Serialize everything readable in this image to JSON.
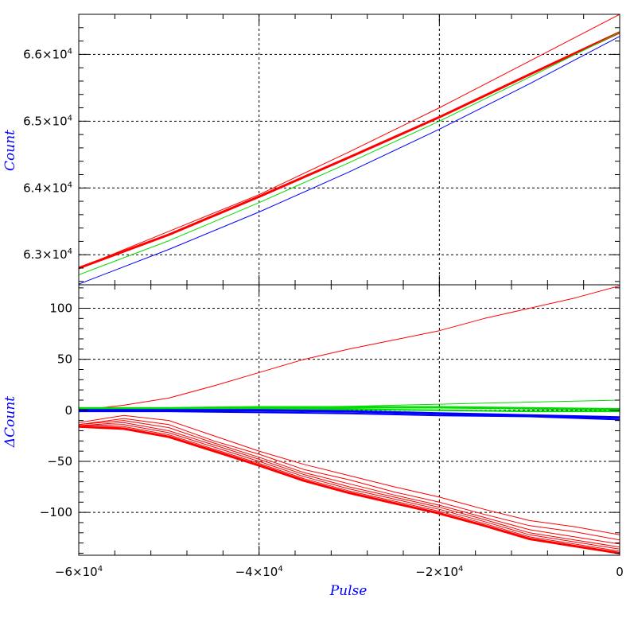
{
  "colors": {
    "red": "#ff0000",
    "green": "#00dd00",
    "blue": "#0000ff",
    "axis_title": "#0000ff",
    "frame": "#000000",
    "grid": "#000000"
  },
  "chart_data": [
    {
      "type": "line",
      "ylabel": "Count",
      "xlim": [
        -60000,
        0
      ],
      "ylim": [
        62550,
        66600
      ],
      "grid": true,
      "y_ticks": [
        {
          "value": 63000,
          "label_base": "6.3×10",
          "label_exp": "4"
        },
        {
          "value": 64000,
          "label_base": "6.4×10",
          "label_exp": "4"
        },
        {
          "value": 65000,
          "label_base": "6.5×10",
          "label_exp": "4"
        },
        {
          "value": 66000,
          "label_base": "6.6×10",
          "label_exp": "4"
        }
      ],
      "series": [
        {
          "color": "red",
          "width": 1,
          "x": [
            -60000,
            -50000,
            -40000,
            -30000,
            -20000,
            -10000,
            0
          ],
          "values": [
            62800,
            63350,
            63900,
            64540,
            65200,
            65900,
            66600
          ]
        },
        {
          "color": "red",
          "width": 3,
          "x": [
            -60000,
            -50000,
            -40000,
            -30000,
            -20000,
            -10000,
            0
          ],
          "values": [
            62800,
            63300,
            63870,
            64460,
            65060,
            65700,
            66330
          ]
        },
        {
          "color": "green",
          "width": 1,
          "x": [
            -60000,
            -50000,
            -40000,
            -30000,
            -20000,
            -10000,
            0
          ],
          "values": [
            62700,
            63210,
            63780,
            64380,
            65000,
            65660,
            66330
          ]
        },
        {
          "color": "blue",
          "width": 1,
          "x": [
            -60000,
            -50000,
            -40000,
            -30000,
            -20000,
            -10000,
            0
          ],
          "values": [
            62560,
            63080,
            63640,
            64240,
            64880,
            65560,
            66270
          ]
        }
      ]
    },
    {
      "type": "line",
      "xlabel": "Pulse",
      "ylabel": "ΔCount",
      "xlim": [
        -60000,
        0
      ],
      "ylim": [
        -142,
        123
      ],
      "grid": true,
      "x_ticks": [
        {
          "value": -60000,
          "label_base": "−6×10",
          "label_exp": "4"
        },
        {
          "value": -40000,
          "label_base": "−4×10",
          "label_exp": "4"
        },
        {
          "value": -20000,
          "label_base": "−2×10",
          "label_exp": "4"
        },
        {
          "value": 0,
          "label_base": "0",
          "label_exp": ""
        }
      ],
      "y_ticks": [
        {
          "value": -100,
          "label": "−100"
        },
        {
          "value": -50,
          "label": "−50"
        },
        {
          "value": 0,
          "label": "0"
        },
        {
          "value": 50,
          "label": "50"
        },
        {
          "value": 100,
          "label": "100"
        }
      ],
      "series": [
        {
          "color": "red",
          "width": 1,
          "x": [
            -60000,
            -55000,
            -50000,
            -45000,
            -40000,
            -35000,
            -30000,
            -25000,
            -20000,
            -15000,
            -10000,
            -5000,
            0
          ],
          "values": [
            0,
            5,
            12,
            24,
            37,
            50,
            60,
            69,
            78,
            90,
            100,
            110,
            122
          ]
        },
        {
          "color": "red",
          "width": 1,
          "x": [
            -60000,
            -55000,
            -50000,
            -45000,
            -40000,
            -35000,
            -30000,
            -25000,
            -20000,
            -15000,
            -10000,
            -5000,
            0
          ],
          "values": [
            -12,
            -5,
            -10,
            -25,
            -40,
            -53,
            -64,
            -75,
            -85,
            -97,
            -108,
            -114,
            -122
          ]
        },
        {
          "color": "red",
          "width": 1,
          "x": [
            -60000,
            -55000,
            -50000,
            -45000,
            -40000,
            -35000,
            -30000,
            -25000,
            -20000,
            -15000,
            -10000,
            -5000,
            0
          ],
          "values": [
            -14,
            -8,
            -14,
            -30,
            -43,
            -58,
            -68,
            -80,
            -90,
            -102,
            -113,
            -119,
            -127
          ]
        },
        {
          "color": "red",
          "width": 1,
          "x": [
            -60000,
            -55000,
            -50000,
            -45000,
            -40000,
            -35000,
            -30000,
            -25000,
            -20000,
            -15000,
            -10000,
            -5000,
            0
          ],
          "values": [
            -14,
            -10,
            -17,
            -32,
            -46,
            -61,
            -72,
            -83,
            -93,
            -105,
            -117,
            -124,
            -131
          ]
        },
        {
          "color": "red",
          "width": 1,
          "x": [
            -60000,
            -55000,
            -50000,
            -45000,
            -40000,
            -35000,
            -30000,
            -25000,
            -20000,
            -15000,
            -10000,
            -5000,
            0
          ],
          "values": [
            -15,
            -12,
            -20,
            -34,
            -48,
            -63,
            -75,
            -85,
            -95,
            -107,
            -120,
            -127,
            -134
          ]
        },
        {
          "color": "red",
          "width": 1,
          "x": [
            -60000,
            -55000,
            -50000,
            -45000,
            -40000,
            -35000,
            -30000,
            -25000,
            -20000,
            -15000,
            -10000,
            -5000,
            0
          ],
          "values": [
            -15,
            -14,
            -22,
            -36,
            -50,
            -65,
            -77,
            -87,
            -97,
            -109,
            -122,
            -129,
            -136
          ]
        },
        {
          "color": "red",
          "width": 1,
          "x": [
            -60000,
            -55000,
            -50000,
            -45000,
            -40000,
            -35000,
            -30000,
            -25000,
            -20000,
            -15000,
            -10000,
            -5000,
            0
          ],
          "values": [
            -16,
            -16,
            -24,
            -38,
            -52,
            -67,
            -79,
            -89,
            -99,
            -111,
            -124,
            -131,
            -138
          ]
        },
        {
          "color": "red",
          "width": 3,
          "x": [
            -60000,
            -55000,
            -50000,
            -45000,
            -40000,
            -35000,
            -30000,
            -25000,
            -20000,
            -15000,
            -10000,
            -5000,
            0
          ],
          "values": [
            -16,
            -18,
            -26,
            -40,
            -54,
            -69,
            -81,
            -91,
            -101,
            -113,
            -126,
            -133,
            -140
          ]
        },
        {
          "color": "green",
          "width": 1,
          "x": [
            -60000,
            -50000,
            -40000,
            -30000,
            -20000,
            -10000,
            0
          ],
          "values": [
            1,
            2,
            3,
            4,
            6,
            8,
            10
          ]
        },
        {
          "color": "green",
          "width": 3,
          "x": [
            -60000,
            -50000,
            -40000,
            -30000,
            -20000,
            -10000,
            0
          ],
          "values": [
            2,
            2,
            3,
            3,
            3,
            2,
            1
          ]
        },
        {
          "color": "green",
          "width": 2,
          "x": [
            -60000,
            -50000,
            -40000,
            -30000,
            -20000,
            -10000,
            0
          ],
          "values": [
            0,
            1,
            1,
            1,
            0,
            -1,
            -1
          ]
        },
        {
          "color": "blue",
          "width": 3,
          "x": [
            -60000,
            -50000,
            -40000,
            -30000,
            -20000,
            -10000,
            0
          ],
          "values": [
            0,
            0,
            0,
            -1,
            -3,
            -5,
            -7
          ]
        },
        {
          "color": "blue",
          "width": 2,
          "x": [
            -60000,
            -50000,
            -40000,
            -30000,
            -20000,
            -10000,
            0
          ],
          "values": [
            -1,
            -1,
            -2,
            -3,
            -5,
            -6,
            -9
          ]
        }
      ]
    }
  ]
}
